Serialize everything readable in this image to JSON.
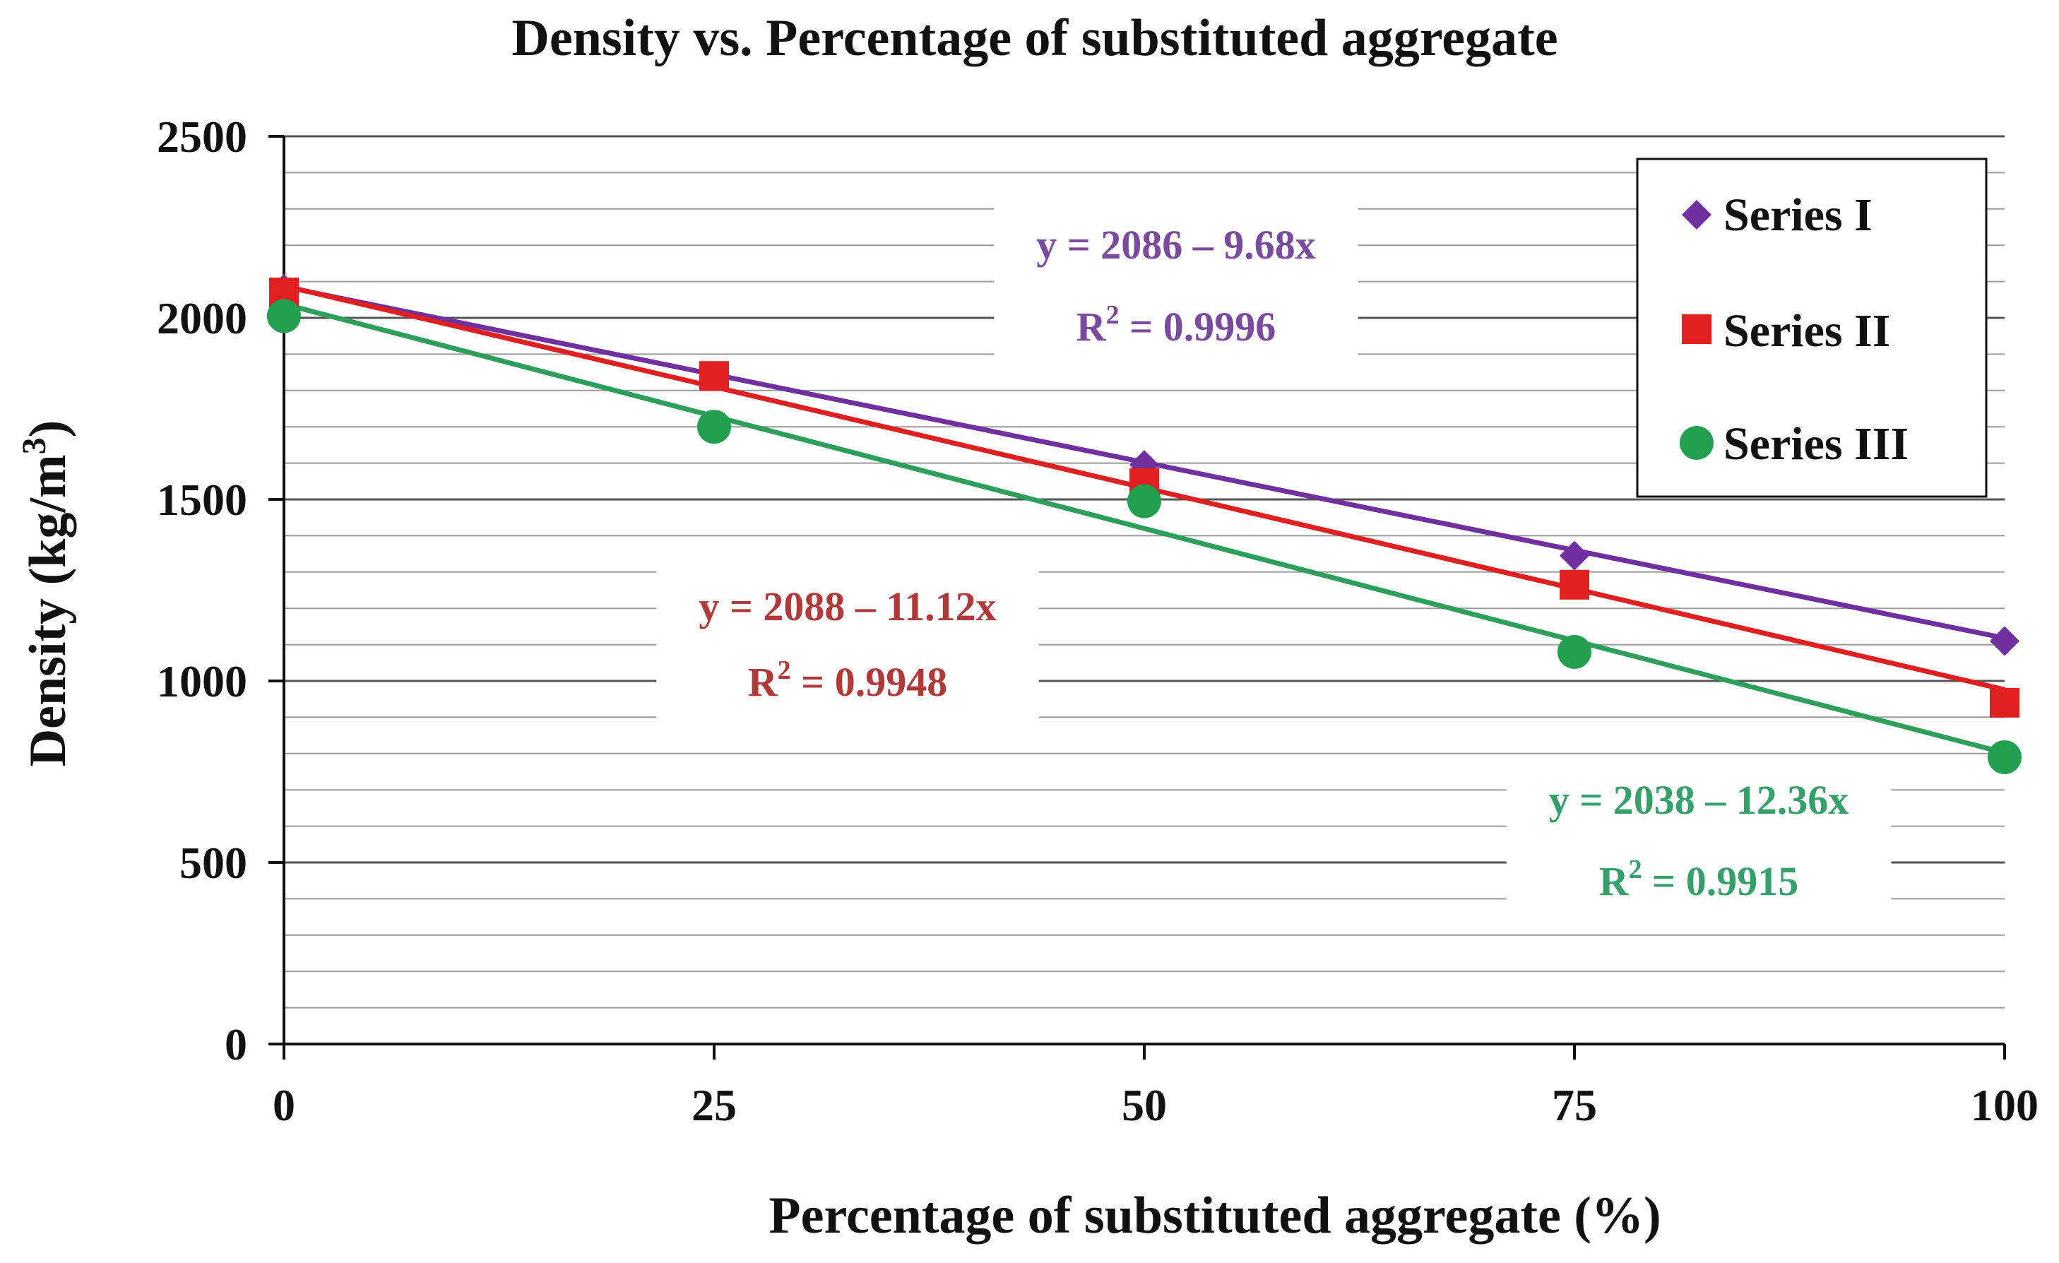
{
  "chart_data": {
    "type": "scatter",
    "title": "Density vs. Percentage of substituted aggregate",
    "xlabel": "Percentage of substituted aggregate (%)",
    "ylabel_main": "Density (kg/m",
    "ylabel_sup": "3",
    "ylabel_close": ")",
    "x": [
      0,
      25,
      50,
      75,
      100
    ],
    "xticks": [
      "0",
      "25",
      "50",
      "75",
      "100"
    ],
    "xlim": [
      0,
      100
    ],
    "ylim": [
      0,
      2500
    ],
    "yticks": [
      "0",
      "500",
      "1000",
      "1500",
      "2000",
      "2500"
    ],
    "grid": true,
    "minor_grid_step": 100,
    "legend_position": "top-right",
    "series": [
      {
        "name": "Series I",
        "marker": "diamond",
        "color": "#7030A0",
        "values": [
          2080,
          1840,
          1595,
          1345,
          1110
        ],
        "trend": {
          "intercept": 2086,
          "slope": -9.68
        },
        "equation": "y = 2086 – 9.68x",
        "r2_prefix": "R",
        "r2_sup": "2",
        "r2_value": " = 0.9996"
      },
      {
        "name": "Series II",
        "marker": "square",
        "color": "#E02020",
        "values": [
          2070,
          1840,
          1545,
          1265,
          940
        ],
        "trend": {
          "intercept": 2088,
          "slope": -11.12
        },
        "equation": "y = 2088 – 11.12x",
        "r2_prefix": "R",
        "r2_sup": "2",
        "r2_value": " = 0.9948"
      },
      {
        "name": "Series III",
        "marker": "circle",
        "color": "#22A050",
        "line_color": "#2E9E5B",
        "values": [
          2005,
          1700,
          1495,
          1080,
          790
        ],
        "trend": {
          "intercept": 2038,
          "slope": -12.36
        },
        "equation": "y = 2038 – 12.36x",
        "r2_prefix": "R",
        "r2_sup": "2",
        "r2_value": " = 0.9915"
      }
    ],
    "eq_colors": [
      "#7A4A9E",
      "#B03A3A",
      "#35A06A"
    ]
  }
}
